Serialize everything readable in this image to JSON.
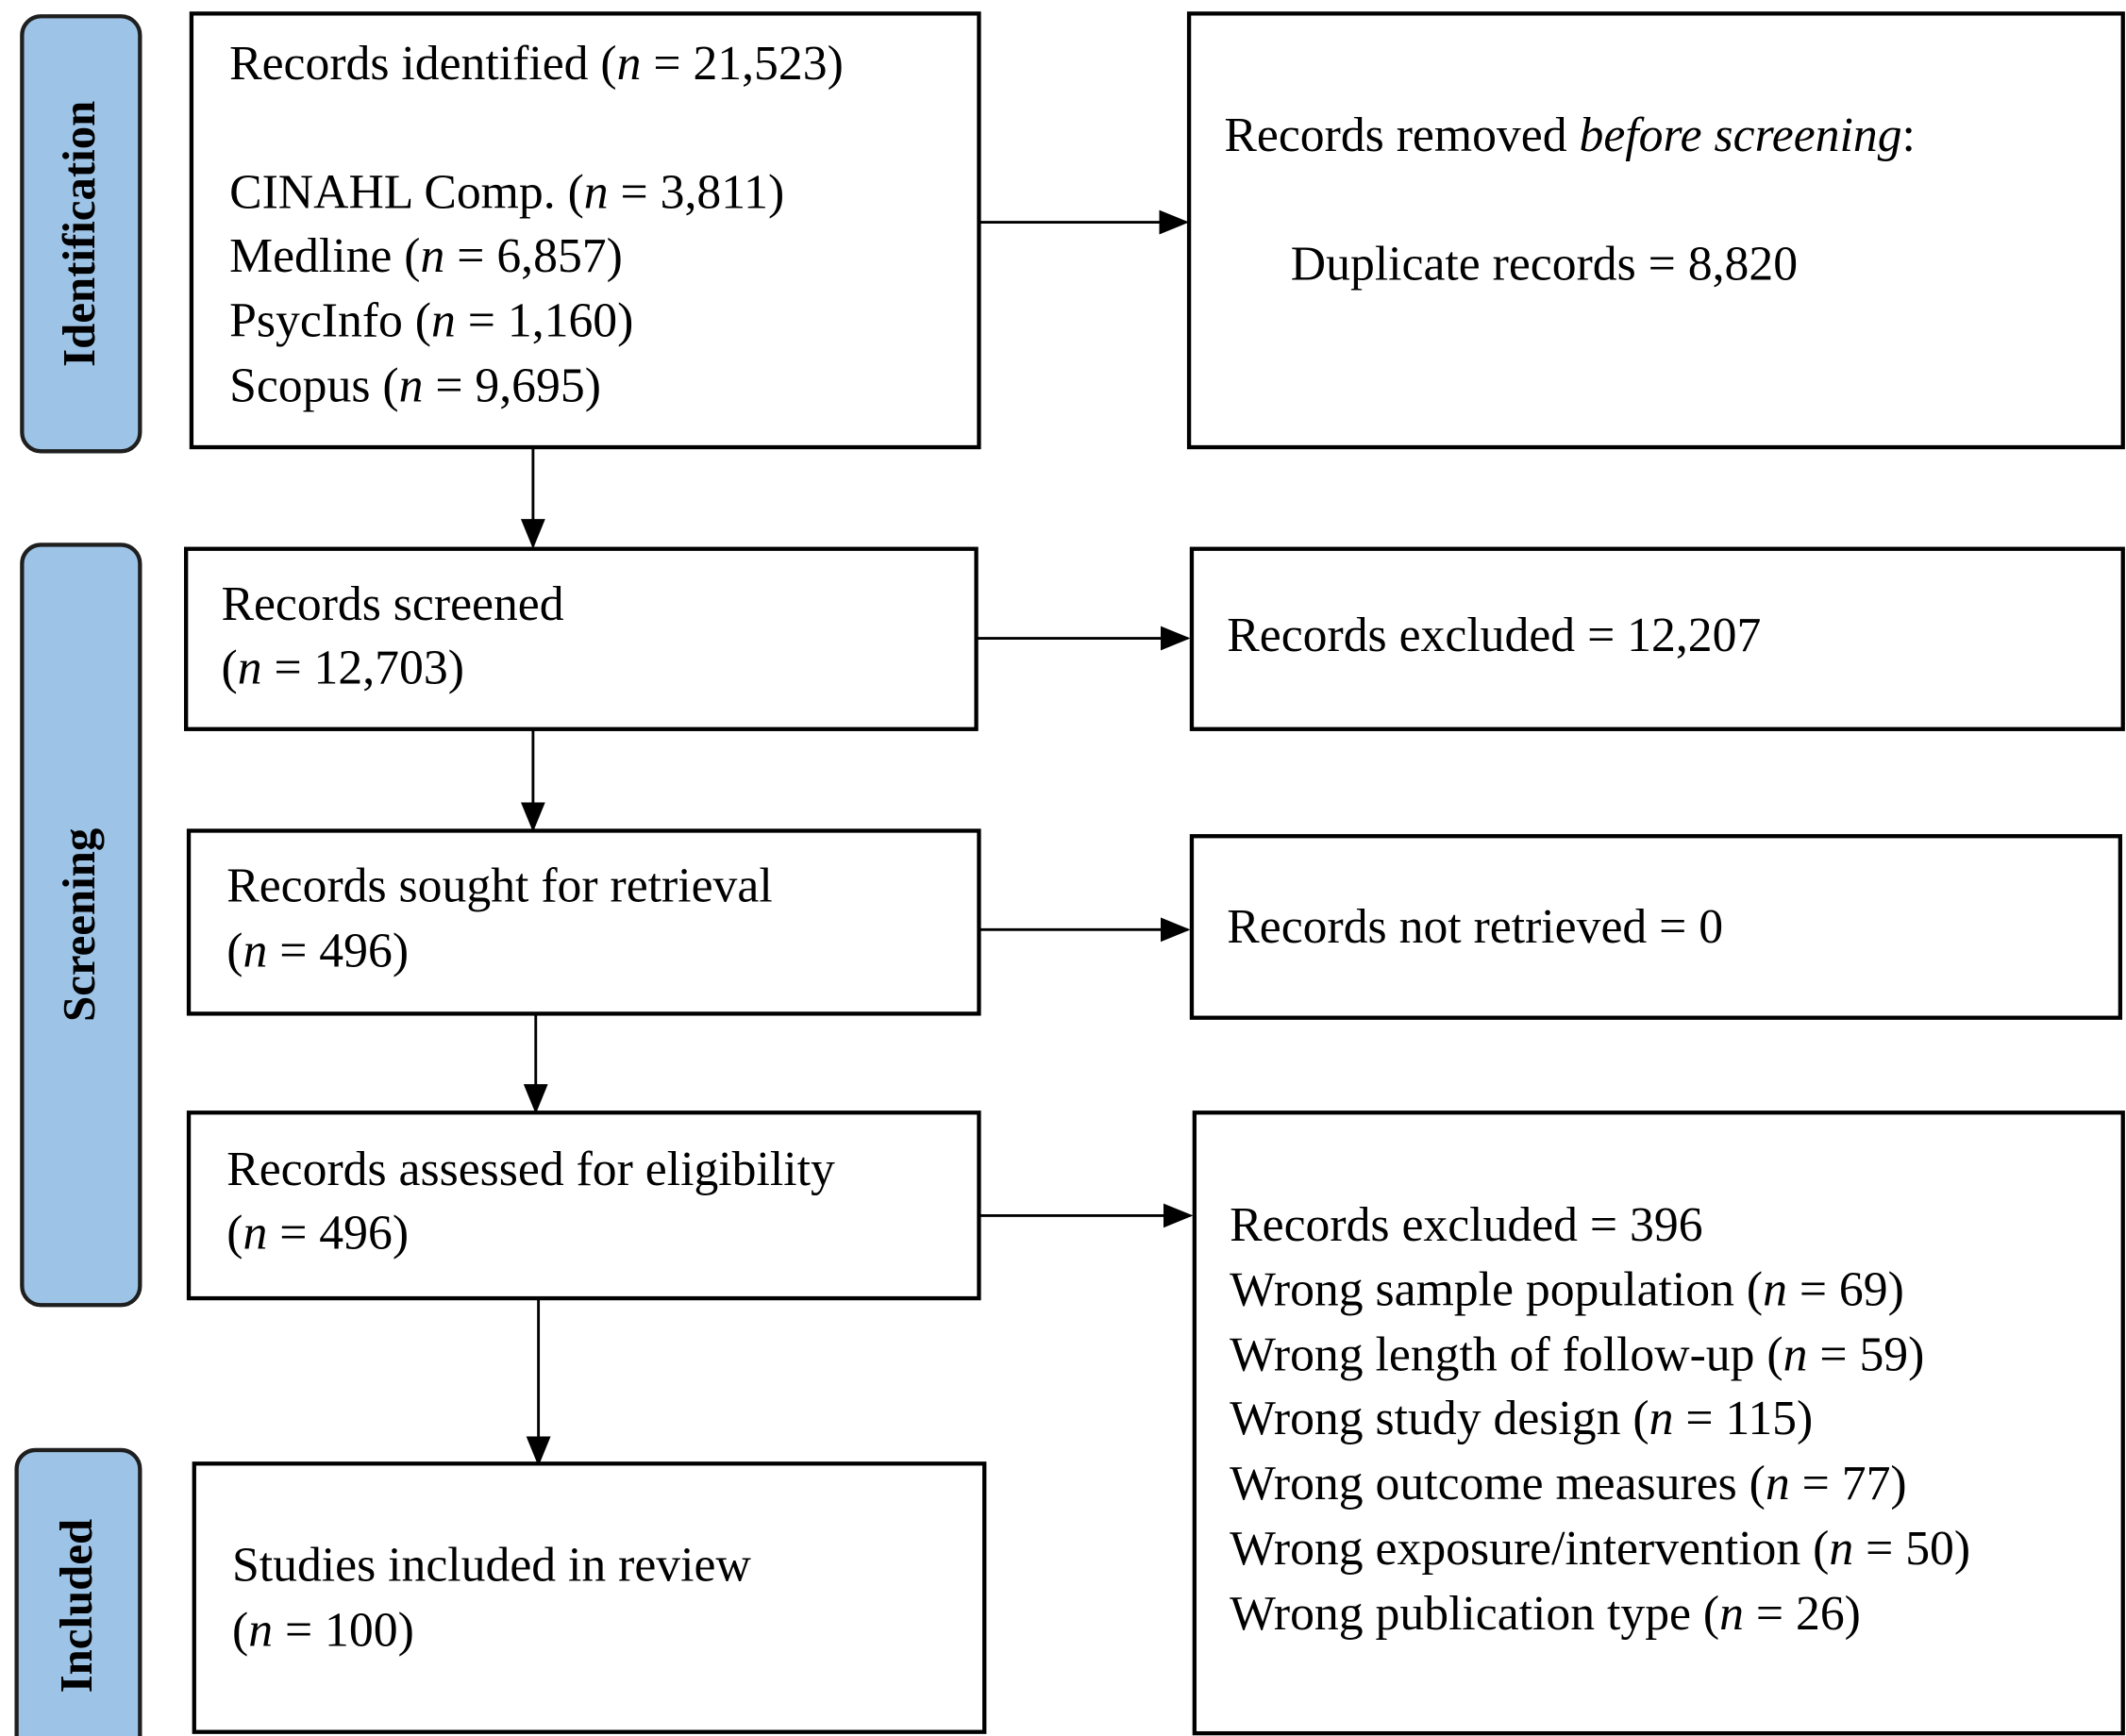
{
  "stages": [
    {
      "label": "Identification"
    },
    {
      "label": "Screening"
    },
    {
      "label": "Included"
    }
  ],
  "boxes": [
    {
      "lines": [
        [
          "Records identified (",
          "n",
          " = 21,523)"
        ],
        [
          "CINAHL Comp. (",
          "n",
          " = 3,811)"
        ],
        [
          "Medline (",
          "n",
          " = 6,857)"
        ],
        [
          "PsycInfo (",
          "n",
          " = 1,160)"
        ],
        [
          "Scopus (",
          "n",
          " = 9,695)"
        ]
      ]
    },
    {
      "lines": [
        [
          "Records removed ",
          "before screening",
          ":"
        ],
        [
          "Duplicate records = 8,820"
        ]
      ]
    },
    {
      "lines": [
        [
          "Records screened"
        ],
        [
          "(",
          "n",
          " = 12,703)"
        ]
      ]
    },
    {
      "lines": [
        [
          "Records excluded = 12,207"
        ]
      ]
    },
    {
      "lines": [
        [
          "Records sought for retrieval"
        ],
        [
          "(",
          "n",
          " = 496)"
        ]
      ]
    },
    {
      "lines": [
        [
          "Records not retrieved = 0"
        ]
      ]
    },
    {
      "lines": [
        [
          "Records assessed for eligibility"
        ],
        [
          "(",
          "n",
          " = 496)"
        ]
      ]
    },
    {
      "lines": [
        [
          "Records excluded = 396"
        ],
        [
          "Wrong sample population (",
          "n",
          " = 69)"
        ],
        [
          "Wrong length of follow-up (",
          "n",
          " = 59)"
        ],
        [
          "Wrong study design (",
          "n",
          " = 115)"
        ],
        [
          "Wrong outcome measures (",
          "n",
          " = 77)"
        ],
        [
          "Wrong exposure/intervention (",
          "n",
          " = 50)"
        ],
        [
          "Wrong publication type (",
          "n",
          " = 26)"
        ]
      ]
    },
    {
      "lines": [
        [
          "Studies included in review"
        ],
        [
          "(",
          "n",
          " = 100)"
        ]
      ]
    }
  ]
}
